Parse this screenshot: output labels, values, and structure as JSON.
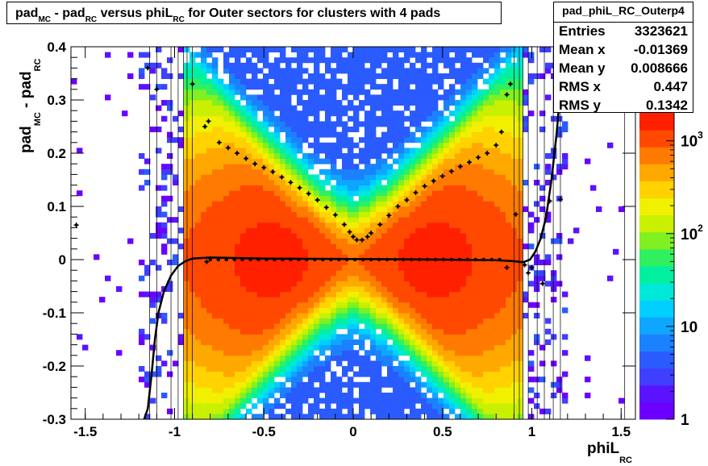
{
  "title": {
    "parts": [
      {
        "t": "pad",
        "sub": false
      },
      {
        "t": "MC",
        "sub": true
      },
      {
        "t": " - pad",
        "sub": false
      },
      {
        "t": "RC",
        "sub": true
      },
      {
        "t": " versus phiL",
        "sub": false
      },
      {
        "t": "RC",
        "sub": true
      },
      {
        "t": " for Outer sectors for clusters with 4 pads",
        "sub": false
      }
    ]
  },
  "stats": {
    "name": "pad_phiL_RC_Outerp4",
    "rows": [
      {
        "label": "Entries",
        "value": "3323621"
      },
      {
        "label": "Mean x",
        "value": "-0.01369"
      },
      {
        "label": "Mean y",
        "value": "0.008666"
      },
      {
        "label": "RMS x",
        "value": "0.447"
      },
      {
        "label": "RMS y",
        "value": "0.1342"
      }
    ]
  },
  "chart_data": {
    "type": "heatmap",
    "title": "pad_MC - pad_RC versus phiL_RC for Outer sectors for clusters with 4 pads",
    "xlabel": "phiL_RC",
    "ylabel": "pad_MC - pad_RC",
    "xlim": [
      -1.58,
      1.58
    ],
    "ylim": [
      -0.3,
      0.4
    ],
    "x_ticks": [
      "-1.5",
      "-1",
      "-0.5",
      "0",
      "0.5",
      "1",
      "1.5"
    ],
    "x_tick_values": [
      -1.5,
      -1,
      -0.5,
      0,
      0.5,
      1,
      1.5
    ],
    "y_ticks": [
      "-0.3",
      "-0.2",
      "-0.1",
      "0",
      "0.1",
      "0.2",
      "0.3",
      "0.4"
    ],
    "y_tick_values": [
      -0.3,
      -0.2,
      -0.1,
      0,
      0.1,
      0.2,
      0.3,
      0.4
    ],
    "z_scale": "log",
    "z_ticks": [
      "1",
      "10",
      "10^2",
      "10^3"
    ],
    "z_tick_values": [
      1,
      10,
      100,
      1000
    ],
    "z_max": 2000,
    "colors": [
      "#6c00ff",
      "#5b13ff",
      "#3f3fff",
      "#2a5bff",
      "#1b82ff",
      "#0ea6ff",
      "#00cfff",
      "#00e8d8",
      "#00f0a0",
      "#30f060",
      "#80f020",
      "#c8f000",
      "#f0f000",
      "#ffd200",
      "#ffa800",
      "#ff7a00",
      "#ff4800",
      "#ff2000"
    ],
    "rms_profile": [
      {
        "x": -1.15,
        "y": 0.36
      },
      {
        "x": -1.1,
        "y": 0.32
      },
      {
        "x": -0.83,
        "y": 0.25
      },
      {
        "x": -0.81,
        "y": 0.26
      },
      {
        "x": -0.75,
        "y": 0.22
      },
      {
        "x": -0.7,
        "y": 0.21
      },
      {
        "x": -0.65,
        "y": 0.2
      },
      {
        "x": -0.6,
        "y": 0.19
      },
      {
        "x": -0.55,
        "y": 0.18
      },
      {
        "x": -0.5,
        "y": 0.173
      },
      {
        "x": -0.45,
        "y": 0.165
      },
      {
        "x": -0.4,
        "y": 0.155
      },
      {
        "x": -0.35,
        "y": 0.145
      },
      {
        "x": -0.3,
        "y": 0.135
      },
      {
        "x": -0.25,
        "y": 0.124
      },
      {
        "x": -0.2,
        "y": 0.112
      },
      {
        "x": -0.15,
        "y": 0.098
      },
      {
        "x": -0.1,
        "y": 0.084
      },
      {
        "x": -0.05,
        "y": 0.066
      },
      {
        "x": -0.02,
        "y": 0.052
      },
      {
        "x": 0.0,
        "y": 0.043
      },
      {
        "x": 0.02,
        "y": 0.037
      },
      {
        "x": 0.05,
        "y": 0.037
      },
      {
        "x": 0.08,
        "y": 0.043
      },
      {
        "x": 0.1,
        "y": 0.05
      },
      {
        "x": 0.15,
        "y": 0.066
      },
      {
        "x": 0.2,
        "y": 0.083
      },
      {
        "x": 0.25,
        "y": 0.1
      },
      {
        "x": 0.3,
        "y": 0.112
      },
      {
        "x": 0.35,
        "y": 0.126
      },
      {
        "x": 0.4,
        "y": 0.138
      },
      {
        "x": 0.45,
        "y": 0.148
      },
      {
        "x": 0.5,
        "y": 0.157
      },
      {
        "x": 0.55,
        "y": 0.166
      },
      {
        "x": 0.6,
        "y": 0.175
      },
      {
        "x": 0.65,
        "y": 0.183
      },
      {
        "x": 0.7,
        "y": 0.192
      },
      {
        "x": 0.75,
        "y": 0.2
      },
      {
        "x": 0.8,
        "y": 0.215
      },
      {
        "x": 0.83,
        "y": 0.24
      },
      {
        "x": 0.86,
        "y": 0.31
      },
      {
        "x": 0.88,
        "y": 0.33
      },
      {
        "x": 0.91,
        "y": 0.085
      },
      {
        "x": 0.96,
        "y": -0.01
      },
      {
        "x": 1.0,
        "y": -0.015
      },
      {
        "x": 1.1,
        "y": 0.11
      },
      {
        "x": 1.16,
        "y": 0.113
      },
      {
        "x": -0.9,
        "y": 0.33
      },
      {
        "x": -0.82,
        "y": -0.004
      },
      {
        "x": 0.86,
        "y": -0.015
      },
      {
        "x": 1.06,
        "y": -0.045
      },
      {
        "x": 0.98,
        "y": -0.025
      },
      {
        "x": -1.55,
        "y": 0.065
      }
    ],
    "fit_curve": [
      {
        "x": -1.17,
        "y": -0.3
      },
      {
        "x": -1.15,
        "y": -0.28
      },
      {
        "x": -1.13,
        "y": -0.22
      },
      {
        "x": -1.11,
        "y": -0.15
      },
      {
        "x": -1.09,
        "y": -0.1
      },
      {
        "x": -1.06,
        "y": -0.06
      },
      {
        "x": -1.02,
        "y": -0.03
      },
      {
        "x": -0.98,
        "y": -0.012
      },
      {
        "x": -0.94,
        "y": -0.003
      },
      {
        "x": -0.9,
        "y": 0.002
      },
      {
        "x": -0.8,
        "y": 0.004
      },
      {
        "x": -0.5,
        "y": 0.002
      },
      {
        "x": 0.0,
        "y": 0.001
      },
      {
        "x": 0.5,
        "y": 0.0
      },
      {
        "x": 0.8,
        "y": -0.001
      },
      {
        "x": 0.9,
        "y": -0.003
      },
      {
        "x": 0.95,
        "y": -0.005
      },
      {
        "x": 0.99,
        "y": 0.0
      },
      {
        "x": 1.02,
        "y": 0.015
      },
      {
        "x": 1.05,
        "y": 0.04
      },
      {
        "x": 1.08,
        "y": 0.08
      },
      {
        "x": 1.11,
        "y": 0.15
      },
      {
        "x": 1.14,
        "y": 0.24
      },
      {
        "x": 1.16,
        "y": 0.32
      },
      {
        "x": 1.18,
        "y": 0.4
      }
    ]
  }
}
